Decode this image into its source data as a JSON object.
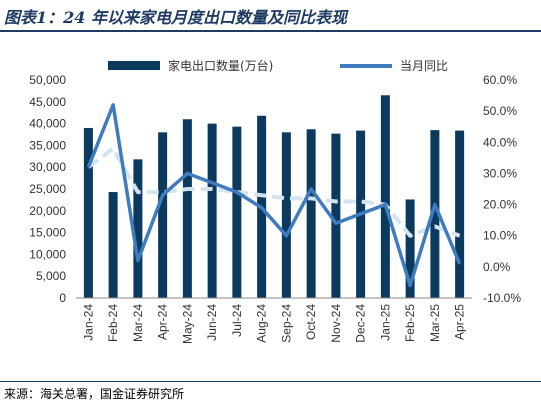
{
  "header": {
    "title": "图表1：24 年以来家电月度出口数量及同比表现"
  },
  "footer": {
    "source": "来源：海关总署，国金证券研究所"
  },
  "chart_data": {
    "type": "bar",
    "categories": [
      "Jan-24",
      "Feb-24",
      "Mar-24",
      "Apr-24",
      "May-24",
      "Jun-24",
      "Jul-24",
      "Aug-24",
      "Sep-24",
      "Oct-24",
      "Nov-24",
      "Dec-24",
      "Jan-25",
      "Feb-25",
      "Mar-25",
      "Apr-25"
    ],
    "series": [
      {
        "name": "家电出口数量(万台)",
        "type": "bar",
        "axis": "left",
        "values": [
          39000,
          24300,
          31800,
          38000,
          41000,
          40000,
          39300,
          41800,
          38000,
          38700,
          37700,
          38400,
          46500,
          22600,
          38500,
          38400
        ]
      },
      {
        "name": "当月同比",
        "type": "line",
        "axis": "right",
        "values": [
          32,
          52,
          2,
          23,
          30,
          27,
          24,
          19,
          10,
          25,
          14,
          17,
          20,
          -6,
          20,
          1
        ]
      },
      {
        "type": "line",
        "style": "dashed",
        "axis": "right",
        "values": [
          32,
          38,
          24,
          24,
          25,
          25,
          24,
          23,
          22,
          22,
          21,
          21,
          20,
          10,
          13,
          10
        ]
      }
    ],
    "y_left": {
      "min": 0,
      "max": 50000,
      "step": 5000,
      "ticks": [
        "0",
        "5,000",
        "10,000",
        "15,000",
        "20,000",
        "25,000",
        "30,000",
        "35,000",
        "40,000",
        "45,000",
        "50,000"
      ]
    },
    "y_right": {
      "min": -10,
      "max": 60,
      "step": 10,
      "ticks": [
        "-10.0%",
        "0.0%",
        "10.0%",
        "20.0%",
        "30.0%",
        "40.0%",
        "50.0%",
        "60.0%"
      ]
    },
    "legend_position": "top-center",
    "grid": false,
    "colors": {
      "bar": "#0b3a5e",
      "line": "#3e7bbf",
      "dashed": "#d3e3f1",
      "title": "#1f3b63"
    }
  }
}
